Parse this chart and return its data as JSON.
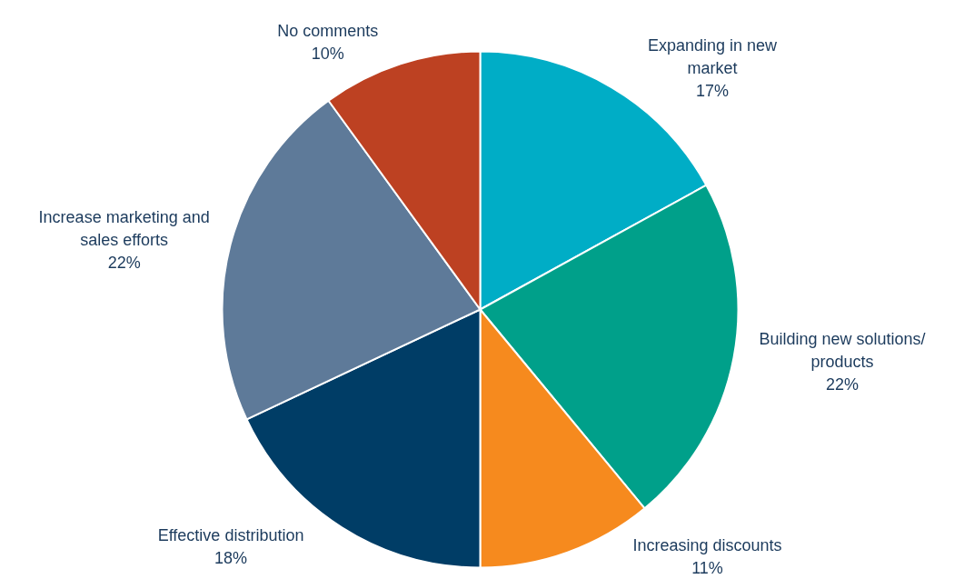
{
  "chart_data": {
    "type": "pie",
    "categories": [
      "Expanding in new\nmarket",
      "Building new solutions/\nproducts",
      "Increasing discounts",
      "Effective distribution",
      "Increase marketing and\nsales efforts",
      "No comments"
    ],
    "values": [
      17,
      22,
      11,
      18,
      22,
      10
    ],
    "value_labels": [
      "17%",
      "22%",
      "11%",
      "18%",
      "22%",
      "10%"
    ],
    "colors": [
      "#00adc6",
      "#00a08a",
      "#f68a1e",
      "#003d66",
      "#5e7a99",
      "#bd4122"
    ],
    "legend": false
  }
}
